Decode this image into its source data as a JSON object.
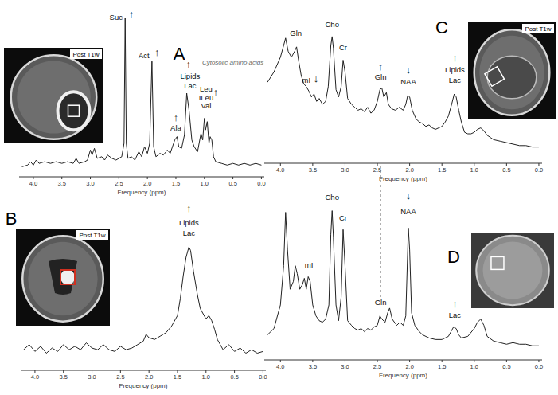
{
  "chart_data": [
    {
      "type": "line",
      "title": "A",
      "x_label": "Frequency (ppm)",
      "color": "#222222",
      "tick_labels": "x",
      "inset_label": "Post T1w",
      "xlim": [
        4.25,
        -0.05
      ],
      "ylim": [
        0,
        100
      ],
      "xticks": [
        {
          "value": 4,
          "label": "4.0"
        },
        {
          "value": 3.5,
          "label": "3.5"
        },
        {
          "value": 3,
          "label": "3.0"
        },
        {
          "value": 2.5,
          "label": "2.5"
        },
        {
          "value": 2,
          "label": "2.0"
        },
        {
          "value": 1.5,
          "label": "1.5"
        },
        {
          "value": 1,
          "label": "1.0"
        },
        {
          "value": 0.5,
          "label": "0.5"
        },
        {
          "value": 0,
          "label": "0.0"
        }
      ],
      "x": [
        4.2,
        4.1,
        4.05,
        4.0,
        3.95,
        3.9,
        3.8,
        3.7,
        3.6,
        3.5,
        3.4,
        3.3,
        3.25,
        3.2,
        3.1,
        3.05,
        3.0,
        2.97,
        2.93,
        2.88,
        2.8,
        2.75,
        2.7,
        2.62,
        2.55,
        2.5,
        2.45,
        2.41,
        2.39,
        2.37,
        2.34,
        2.28,
        2.22,
        2.15,
        2.1,
        2.05,
        2.0,
        1.96,
        1.92,
        1.89,
        1.85,
        1.78,
        1.72,
        1.65,
        1.6,
        1.52,
        1.48,
        1.45,
        1.4,
        1.35,
        1.31,
        1.27,
        1.22,
        1.18,
        1.12,
        1.06,
        1.03,
        1.0,
        0.98,
        0.95,
        0.92,
        0.9,
        0.87,
        0.84,
        0.8,
        0.7,
        0.6,
        0.5,
        0.4,
        0.3,
        0.2,
        0.1,
        0.0
      ],
      "values": [
        6,
        7,
        9,
        7,
        10,
        8,
        9,
        8,
        9,
        8,
        9,
        8,
        11,
        8,
        9,
        10,
        16,
        13,
        17,
        11,
        12,
        10,
        13,
        11,
        10,
        11,
        12,
        20,
        95,
        20,
        11,
        12,
        10,
        15,
        12,
        18,
        14,
        20,
        69,
        18,
        12,
        14,
        13,
        16,
        14,
        22,
        24,
        18,
        17,
        25,
        50,
        40,
        22,
        18,
        15,
        26,
        22,
        35,
        28,
        33,
        20,
        24,
        22,
        12,
        9,
        8,
        7,
        8,
        7,
        8,
        7,
        8,
        7
      ],
      "annotations": [
        {
          "text": "Suc",
          "x": 2.55,
          "y": 95
        },
        {
          "text": "↑",
          "x": 2.28,
          "y": 97
        },
        {
          "text": "Act",
          "x": 2.06,
          "y": 72
        },
        {
          "text": "↑",
          "x": 1.83,
          "y": 74
        },
        {
          "text": "↑",
          "x": 1.28,
          "y": 67
        },
        {
          "text": "Lipids",
          "x": 1.25,
          "y": 60
        },
        {
          "text": "Lac",
          "x": 1.25,
          "y": 54
        },
        {
          "text": "↑",
          "x": 1.5,
          "y": 35
        },
        {
          "text": "Ala",
          "x": 1.5,
          "y": 29
        },
        {
          "text": "Leu",
          "x": 0.97,
          "y": 52
        },
        {
          "text": "ILeu",
          "x": 0.97,
          "y": 47
        },
        {
          "text": "Val",
          "x": 0.97,
          "y": 42
        },
        {
          "text": "↑",
          "x": 0.8,
          "y": 50
        },
        {
          "text": "Cytosolic amino acids",
          "x": 0.5,
          "y": 68
        }
      ]
    },
    {
      "type": "line",
      "title": "B",
      "x_label": "Frequency (ppm)",
      "color": "#222222",
      "tick_labels": "x",
      "inset_label": "Post T1w",
      "xlim": [
        4.25,
        -0.05
      ],
      "ylim": [
        0,
        100
      ],
      "xticks": [
        {
          "value": 4,
          "label": "4.0"
        },
        {
          "value": 3.5,
          "label": "3.5"
        },
        {
          "value": 3,
          "label": "3.0"
        },
        {
          "value": 2.5,
          "label": "2.5"
        },
        {
          "value": 2,
          "label": "2.0"
        },
        {
          "value": 1.5,
          "label": "1.5"
        },
        {
          "value": 1,
          "label": "1.0"
        },
        {
          "value": 0.5,
          "label": "0.5"
        },
        {
          "value": 0,
          "label": "0.0"
        }
      ],
      "x": [
        4.2,
        4.1,
        4.0,
        3.9,
        3.8,
        3.7,
        3.6,
        3.5,
        3.4,
        3.3,
        3.2,
        3.1,
        3.0,
        2.9,
        2.8,
        2.7,
        2.6,
        2.5,
        2.4,
        2.3,
        2.2,
        2.1,
        2.05,
        2.0,
        1.9,
        1.8,
        1.7,
        1.6,
        1.5,
        1.45,
        1.4,
        1.35,
        1.3,
        1.27,
        1.22,
        1.15,
        1.1,
        1.0,
        0.95,
        0.9,
        0.85,
        0.8,
        0.7,
        0.6,
        0.5,
        0.4,
        0.3,
        0.2,
        0.1,
        0.0
      ],
      "values": [
        12,
        15,
        11,
        14,
        10,
        13,
        11,
        15,
        12,
        14,
        12,
        16,
        13,
        12,
        15,
        12,
        11,
        14,
        12,
        13,
        15,
        17,
        21,
        19,
        18,
        20,
        22,
        26,
        32,
        42,
        55,
        66,
        72,
        70,
        58,
        44,
        36,
        30,
        32,
        29,
        24,
        18,
        12,
        15,
        11,
        13,
        10,
        12,
        10,
        11
      ],
      "annotations": [
        {
          "text": "↑",
          "x": 1.3,
          "y": 94
        },
        {
          "text": "Lipids",
          "x": 1.3,
          "y": 86
        },
        {
          "text": "Lac",
          "x": 1.3,
          "y": 80
        }
      ]
    },
    {
      "type": "line",
      "title": "C",
      "x_label": "Frequency (ppm)",
      "color": "#222222",
      "tick_labels": "x",
      "inset_label": "Post T1w",
      "xlim": [
        4.25,
        -0.05
      ],
      "ylim": [
        0,
        100
      ],
      "xticks": [
        {
          "value": 4,
          "label": "4.0"
        },
        {
          "value": 3.5,
          "label": "3.5"
        },
        {
          "value": 3,
          "label": "3.0"
        },
        {
          "value": 2.5,
          "label": "2.5"
        },
        {
          "value": 2,
          "label": "2.0"
        },
        {
          "value": 1.5,
          "label": "1.5"
        },
        {
          "value": 1,
          "label": "1.0"
        },
        {
          "value": 0.5,
          "label": "0.5"
        },
        {
          "value": 0,
          "label": "0.0"
        }
      ],
      "x": [
        4.2,
        4.1,
        4.0,
        3.95,
        3.92,
        3.88,
        3.83,
        3.78,
        3.75,
        3.72,
        3.68,
        3.64,
        3.6,
        3.56,
        3.52,
        3.48,
        3.44,
        3.4,
        3.35,
        3.3,
        3.26,
        3.22,
        3.2,
        3.18,
        3.14,
        3.1,
        3.06,
        3.03,
        3.0,
        2.96,
        2.9,
        2.85,
        2.8,
        2.75,
        2.7,
        2.65,
        2.6,
        2.55,
        2.5,
        2.46,
        2.43,
        2.4,
        2.36,
        2.33,
        2.28,
        2.22,
        2.16,
        2.1,
        2.06,
        2.03,
        2.0,
        1.96,
        1.9,
        1.85,
        1.8,
        1.75,
        1.7,
        1.65,
        1.6,
        1.55,
        1.5,
        1.45,
        1.4,
        1.35,
        1.31,
        1.28,
        1.24,
        1.2,
        1.15,
        1.1,
        1.05,
        1.0,
        0.95,
        0.9,
        0.85,
        0.8,
        0.7,
        0.6,
        0.5,
        0.4,
        0.3,
        0.2,
        0.1,
        0.0
      ],
      "values": [
        55,
        62,
        72,
        80,
        85,
        76,
        72,
        76,
        79,
        70,
        60,
        54,
        52,
        49,
        45,
        47,
        42,
        44,
        40,
        42,
        52,
        80,
        86,
        78,
        50,
        45,
        52,
        70,
        62,
        44,
        40,
        38,
        36,
        37,
        35,
        38,
        34,
        36,
        42,
        50,
        51,
        45,
        48,
        40,
        37,
        36,
        38,
        36,
        40,
        46,
        45,
        36,
        30,
        28,
        27,
        25,
        26,
        24,
        23,
        24,
        25,
        28,
        32,
        40,
        47,
        45,
        36,
        28,
        21,
        20,
        20,
        21,
        23,
        24,
        22,
        19,
        16,
        15,
        14,
        13,
        12,
        12,
        11,
        11
      ],
      "annotations": [
        {
          "text": "Gln",
          "x": 3.76,
          "y": 88
        },
        {
          "text": "Cho",
          "x": 3.2,
          "y": 94
        },
        {
          "text": "Cr",
          "x": 3.03,
          "y": 78
        },
        {
          "text": "mI",
          "x": 3.6,
          "y": 56
        },
        {
          "text": "↓",
          "x": 3.45,
          "y": 57
        },
        {
          "text": "↑",
          "x": 2.45,
          "y": 65
        },
        {
          "text": "Gln",
          "x": 2.45,
          "y": 58
        },
        {
          "text": "↓",
          "x": 2.02,
          "y": 63
        },
        {
          "text": "NAA",
          "x": 2.02,
          "y": 55
        },
        {
          "text": "↑",
          "x": 1.3,
          "y": 71
        },
        {
          "text": "Lipids",
          "x": 1.3,
          "y": 63
        },
        {
          "text": "Lac",
          "x": 1.3,
          "y": 56
        }
      ]
    },
    {
      "type": "line",
      "title": "D",
      "x_label": "Frequency (ppm)",
      "color": "#222222",
      "tick_labels": "x",
      "xlim": [
        4.25,
        -0.05
      ],
      "ylim": [
        0,
        110
      ],
      "xticks": [
        {
          "value": 4,
          "label": "4.0"
        },
        {
          "value": 3.5,
          "label": "3.5"
        },
        {
          "value": 3,
          "label": "3.0"
        },
        {
          "value": 2.5,
          "label": "2.5"
        },
        {
          "value": 2,
          "label": "2.0"
        },
        {
          "value": 1.5,
          "label": "1.5"
        },
        {
          "value": 1,
          "label": "1.0"
        },
        {
          "value": 0.5,
          "label": "0.5"
        },
        {
          "value": 0,
          "label": "0.0"
        }
      ],
      "x": [
        4.2,
        4.1,
        4.0,
        3.95,
        3.92,
        3.89,
        3.85,
        3.8,
        3.77,
        3.74,
        3.7,
        3.66,
        3.63,
        3.6,
        3.57,
        3.54,
        3.5,
        3.45,
        3.4,
        3.35,
        3.3,
        3.25,
        3.22,
        3.2,
        3.18,
        3.14,
        3.1,
        3.06,
        3.03,
        3.0,
        2.96,
        2.9,
        2.85,
        2.8,
        2.75,
        2.7,
        2.65,
        2.6,
        2.55,
        2.5,
        2.46,
        2.43,
        2.38,
        2.34,
        2.31,
        2.27,
        2.2,
        2.15,
        2.1,
        2.06,
        2.03,
        2.02,
        2.0,
        1.97,
        1.92,
        1.85,
        1.8,
        1.7,
        1.6,
        1.5,
        1.45,
        1.4,
        1.36,
        1.32,
        1.28,
        1.24,
        1.2,
        1.1,
        1.0,
        0.95,
        0.9,
        0.85,
        0.8,
        0.7,
        0.6,
        0.5,
        0.4,
        0.3,
        0.2,
        0.1,
        0.0
      ],
      "values": [
        16,
        20,
        35,
        60,
        94,
        70,
        45,
        50,
        60,
        55,
        45,
        48,
        52,
        45,
        53,
        50,
        35,
        28,
        25,
        24,
        26,
        35,
        80,
        95,
        78,
        35,
        25,
        40,
        83,
        60,
        25,
        22,
        20,
        19,
        20,
        18,
        20,
        19,
        21,
        22,
        28,
        26,
        24,
        30,
        33,
        26,
        22,
        24,
        22,
        28,
        70,
        84,
        70,
        30,
        22,
        18,
        16,
        14,
        13,
        13,
        14,
        15,
        18,
        21,
        20,
        16,
        14,
        15,
        20,
        24,
        26,
        22,
        15,
        12,
        11,
        10,
        11,
        10,
        10,
        9,
        9
      ],
      "annotations": [
        {
          "text": "Cho",
          "x": 3.2,
          "y": 103
        },
        {
          "text": "Cr",
          "x": 3.03,
          "y": 90
        },
        {
          "text": "mI",
          "x": 3.56,
          "y": 60
        },
        {
          "text": "↓",
          "x": 2.02,
          "y": 104
        },
        {
          "text": "NAA",
          "x": 2.02,
          "y": 94
        },
        {
          "text": "Gln",
          "x": 2.45,
          "y": 36
        },
        {
          "text": "↑",
          "x": 1.3,
          "y": 35
        },
        {
          "text": "Lac",
          "x": 1.3,
          "y": 28
        }
      ]
    }
  ]
}
